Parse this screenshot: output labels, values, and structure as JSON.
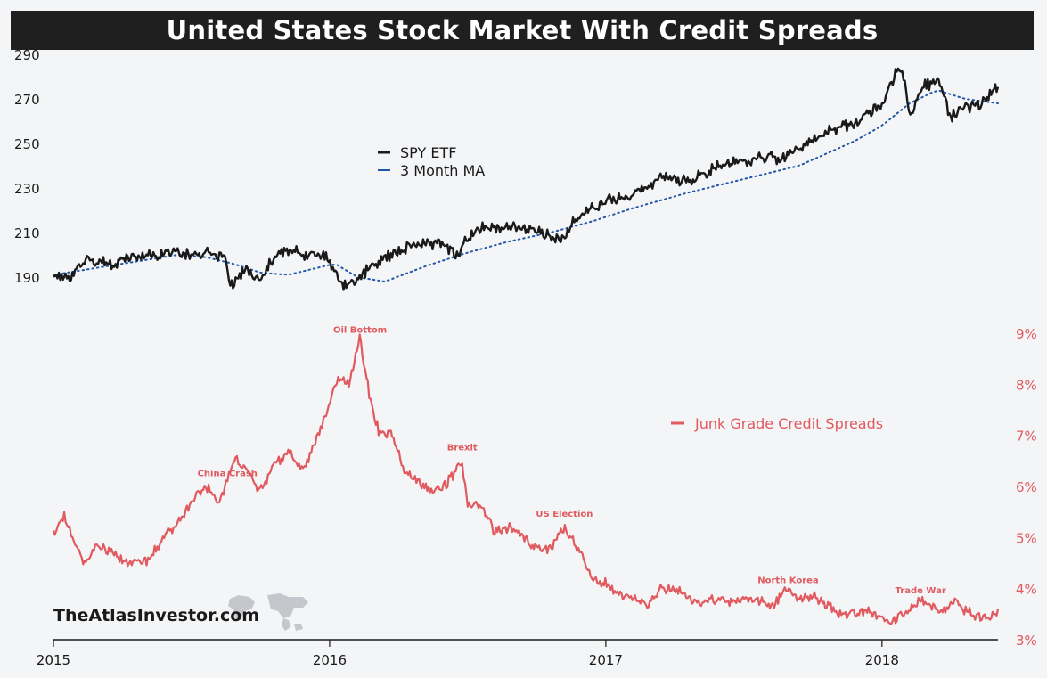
{
  "title": "United States Stock Market With Credit Spreads",
  "brand": "TheAtlasInvestor.com",
  "colors": {
    "spy": "#1a1a1a",
    "ma": "#2257a8",
    "spread": "#e05a5f",
    "title_bg": "#1f1f1f",
    "background": "#f4f5f7"
  },
  "chart_data": [
    {
      "type": "line",
      "title": "United States Stock Market With Credit Spreads",
      "xlabel": "",
      "ylabel": "",
      "x_ticks": [
        "2015",
        "2016",
        "2017",
        "2018"
      ],
      "y_ticks": [
        "190",
        "210",
        "230",
        "250",
        "270",
        "290"
      ],
      "ylim": [
        183,
        291
      ],
      "xlim": [
        2015.0,
        2018.42
      ],
      "legend": {
        "placement": "top-left",
        "entries": [
          "SPY ETF",
          "3 Month MA"
        ]
      },
      "series": [
        {
          "name": "SPY ETF",
          "x": [
            2015.0,
            2015.06,
            2015.12,
            2015.2,
            2015.3,
            2015.4,
            2015.5,
            2015.55,
            2015.62,
            2015.64,
            2015.7,
            2015.75,
            2015.8,
            2015.85,
            2015.92,
            2015.97,
            2016.0,
            2016.05,
            2016.09,
            2016.13,
            2016.2,
            2016.3,
            2016.4,
            2016.47,
            2016.48,
            2016.55,
            2016.65,
            2016.75,
            2016.8,
            2016.85,
            2016.87,
            2016.95,
            2017.0,
            2017.1,
            2017.2,
            2017.3,
            2017.4,
            2017.5,
            2017.6,
            2017.62,
            2017.7,
            2017.8,
            2017.9,
            2018.0,
            2018.05,
            2018.07,
            2018.1,
            2018.15,
            2018.2,
            2018.25,
            2018.3,
            2018.35,
            2018.42
          ],
          "values": [
            191,
            189,
            198,
            196,
            199,
            201,
            200,
            201,
            199,
            187,
            193,
            188,
            199,
            202,
            200,
            201,
            197,
            186,
            188,
            193,
            199,
            204,
            206,
            199,
            205,
            212,
            212,
            211,
            208,
            206,
            213,
            222,
            224,
            227,
            235,
            233,
            240,
            242,
            244,
            241,
            247,
            255,
            259,
            268,
            281,
            285,
            262,
            275,
            279,
            262,
            267,
            267,
            275
          ]
        },
        {
          "name": "3 Month MA",
          "x": [
            2015.0,
            2015.15,
            2015.3,
            2015.45,
            2015.55,
            2015.65,
            2015.75,
            2015.85,
            2015.95,
            2016.02,
            2016.1,
            2016.2,
            2016.35,
            2016.5,
            2016.65,
            2016.8,
            2016.95,
            2017.1,
            2017.3,
            2017.5,
            2017.7,
            2017.9,
            2018.0,
            2018.1,
            2018.2,
            2018.3,
            2018.42
          ],
          "values": [
            191,
            194,
            197,
            200,
            199,
            196,
            192,
            191,
            194,
            196,
            190,
            188,
            195,
            201,
            206,
            210,
            215,
            221,
            228,
            234,
            240,
            251,
            258,
            268,
            274,
            270,
            268
          ]
        }
      ]
    },
    {
      "type": "line",
      "title": "",
      "xlabel": "",
      "ylabel": "",
      "x_ticks": [
        "2015",
        "2016",
        "2017",
        "2018"
      ],
      "y_ticks": [
        "3%",
        "4%",
        "5%",
        "6%",
        "7%",
        "8%",
        "9%"
      ],
      "ylim": [
        3.0,
        9.0
      ],
      "xlim": [
        2015.0,
        2018.42
      ],
      "legend": {
        "placement": "top-right",
        "entries": [
          "Junk Grade Credit Spreads"
        ]
      },
      "annotations": [
        {
          "text": "China Crash",
          "x": 2015.63,
          "y": 6.1
        },
        {
          "text": "Oil Bottom",
          "x": 2016.11,
          "y": 8.9
        },
        {
          "text": "Brexit",
          "x": 2016.48,
          "y": 6.6
        },
        {
          "text": "US Election",
          "x": 2016.85,
          "y": 5.3
        },
        {
          "text": "North Korea",
          "x": 2017.66,
          "y": 4.0
        },
        {
          "text": "Trade War",
          "x": 2018.14,
          "y": 3.8
        }
      ],
      "series": [
        {
          "name": "Junk Grade Credit Spreads",
          "x": [
            2015.0,
            2015.04,
            2015.08,
            2015.12,
            2015.16,
            2015.2,
            2015.25,
            2015.3,
            2015.35,
            2015.4,
            2015.45,
            2015.5,
            2015.55,
            2015.6,
            2015.63,
            2015.66,
            2015.7,
            2015.75,
            2015.8,
            2015.85,
            2015.9,
            2015.95,
            2016.0,
            2016.03,
            2016.07,
            2016.11,
            2016.14,
            2016.18,
            2016.22,
            2016.27,
            2016.32,
            2016.37,
            2016.42,
            2016.48,
            2016.5,
            2016.55,
            2016.6,
            2016.65,
            2016.7,
            2016.75,
            2016.8,
            2016.85,
            2016.9,
            2016.95,
            2017.0,
            2017.05,
            2017.1,
            2017.15,
            2017.2,
            2017.25,
            2017.3,
            2017.35,
            2017.4,
            2017.45,
            2017.5,
            2017.55,
            2017.6,
            2017.66,
            2017.7,
            2017.75,
            2017.8,
            2017.85,
            2017.9,
            2017.95,
            2018.0,
            2018.05,
            2018.08,
            2018.12,
            2018.14,
            2018.18,
            2018.22,
            2018.26,
            2018.3,
            2018.35,
            2018.38,
            2018.42
          ],
          "values": [
            5.1,
            5.4,
            4.8,
            4.5,
            4.85,
            4.7,
            4.55,
            4.5,
            4.6,
            5.0,
            5.3,
            5.65,
            6.0,
            5.7,
            6.1,
            6.6,
            6.3,
            5.9,
            6.4,
            6.7,
            6.3,
            6.9,
            7.6,
            8.1,
            8.0,
            8.9,
            7.9,
            7.0,
            7.1,
            6.3,
            6.1,
            5.9,
            6.0,
            6.5,
            5.6,
            5.6,
            5.1,
            5.2,
            5.0,
            4.8,
            4.8,
            5.2,
            4.8,
            4.2,
            4.1,
            3.9,
            3.85,
            3.65,
            4.0,
            4.0,
            3.8,
            3.75,
            3.8,
            3.75,
            3.8,
            3.8,
            3.6,
            4.0,
            3.8,
            3.85,
            3.7,
            3.5,
            3.5,
            3.6,
            3.4,
            3.35,
            3.55,
            3.65,
            3.8,
            3.65,
            3.55,
            3.8,
            3.6,
            3.4,
            3.45,
            3.55
          ]
        }
      ]
    }
  ]
}
